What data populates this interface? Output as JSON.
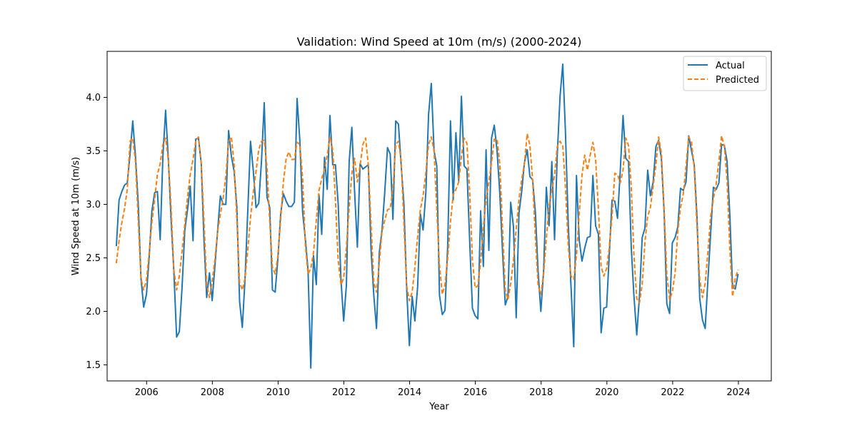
{
  "chart_data": {
    "type": "line",
    "title": "Validation: Wind Speed at 10m (m/s) (2000-2024)",
    "xlabel": "Year",
    "ylabel": "Wind Speed at 10m (m/s)",
    "xlim": [
      2004.8,
      2025.0
    ],
    "ylim": [
      1.35,
      4.43
    ],
    "xticks": [
      2006,
      2008,
      2010,
      2012,
      2014,
      2016,
      2018,
      2020,
      2022,
      2024
    ],
    "yticks": [
      1.5,
      2.0,
      2.5,
      3.0,
      3.5,
      4.0
    ],
    "ytick_labels": [
      "1.5",
      "2.0",
      "2.5",
      "3.0",
      "3.5",
      "4.0"
    ],
    "grid": false,
    "legend_position": "top-right",
    "x_start_year": 2005.08,
    "x_step_years": 0.0833,
    "series": [
      {
        "name": "Actual",
        "color": "#1f77b4",
        "style": "solid",
        "values": [
          2.61,
          3.04,
          3.12,
          3.18,
          3.2,
          3.47,
          3.78,
          3.45,
          3.0,
          2.31,
          2.04,
          2.16,
          2.51,
          2.94,
          3.11,
          3.12,
          2.67,
          3.45,
          3.88,
          3.41,
          2.85,
          2.38,
          1.76,
          1.81,
          2.22,
          2.76,
          2.95,
          3.17,
          2.66,
          3.61,
          3.62,
          3.38,
          2.67,
          2.13,
          2.36,
          2.1,
          2.43,
          2.76,
          3.08,
          3.0,
          3.0,
          3.69,
          3.45,
          3.31,
          2.98,
          2.09,
          1.85,
          2.3,
          2.95,
          3.59,
          3.32,
          2.97,
          3.01,
          3.41,
          3.95,
          3.07,
          2.97,
          2.2,
          2.18,
          2.5,
          2.91,
          3.1,
          3.03,
          2.98,
          2.98,
          3.02,
          3.99,
          3.6,
          2.93,
          2.68,
          2.39,
          1.47,
          2.52,
          2.25,
          3.09,
          2.72,
          3.44,
          3.14,
          3.83,
          3.37,
          3.37,
          3.01,
          2.3,
          1.91,
          2.24,
          3.4,
          3.72,
          3.12,
          2.6,
          3.38,
          3.33,
          3.35,
          3.37,
          2.57,
          2.15,
          1.84,
          2.55,
          2.76,
          3.11,
          3.53,
          3.47,
          2.86,
          3.78,
          3.75,
          3.37,
          3.0,
          2.22,
          1.68,
          2.14,
          1.91,
          2.23,
          2.91,
          2.76,
          3.11,
          3.84,
          4.13,
          3.5,
          3.36,
          2.15,
          1.97,
          2.01,
          2.62,
          3.78,
          3.04,
          3.67,
          3.22,
          4.01,
          3.36,
          3.33,
          2.67,
          2.03,
          1.96,
          1.93,
          2.94,
          2.42,
          3.51,
          2.57,
          3.62,
          3.74,
          3.5,
          3.11,
          2.57,
          2.06,
          2.14,
          3.02,
          2.79,
          1.94,
          2.92,
          3.12,
          3.39,
          3.51,
          3.26,
          3.23,
          2.92,
          2.37,
          2.0,
          2.38,
          3.16,
          2.8,
          3.4,
          2.67,
          3.46,
          4.01,
          4.31,
          3.67,
          2.81,
          2.24,
          1.67,
          3.27,
          2.67,
          2.47,
          2.59,
          2.69,
          2.7,
          3.27,
          2.8,
          2.72,
          1.8,
          2.03,
          2.04,
          2.54,
          3.04,
          3.03,
          2.87,
          3.31,
          3.83,
          3.43,
          3.4,
          2.6,
          2.14,
          1.78,
          2.14,
          2.69,
          2.78,
          3.32,
          3.08,
          3.21,
          3.54,
          3.6,
          3.43,
          2.93,
          2.07,
          1.98,
          2.64,
          2.69,
          2.79,
          3.15,
          3.13,
          3.21,
          3.64,
          3.5,
          3.37,
          2.89,
          2.12,
          1.92,
          1.84,
          2.3,
          2.73,
          3.16,
          3.14,
          3.2,
          3.56,
          3.55,
          3.4,
          2.89,
          2.22,
          2.21,
          2.35
        ]
      },
      {
        "name": "Predicted",
        "color": "#ff7f0e",
        "style": "dashed",
        "values": [
          2.45,
          2.66,
          2.83,
          2.96,
          3.14,
          3.59,
          3.62,
          3.4,
          2.85,
          2.31,
          2.2,
          2.29,
          2.55,
          2.83,
          3.05,
          3.28,
          3.38,
          3.56,
          3.62,
          3.41,
          2.97,
          2.39,
          2.2,
          2.33,
          2.56,
          2.82,
          3.07,
          3.28,
          3.42,
          3.59,
          3.63,
          3.39,
          2.85,
          2.25,
          2.13,
          2.28,
          2.49,
          2.75,
          2.91,
          3.06,
          3.27,
          3.59,
          3.63,
          3.38,
          2.87,
          2.27,
          2.2,
          2.31,
          2.58,
          2.88,
          3.11,
          3.31,
          3.51,
          3.59,
          3.6,
          3.35,
          2.84,
          2.41,
          2.35,
          2.52,
          2.86,
          3.21,
          3.43,
          3.49,
          3.42,
          3.42,
          3.58,
          3.56,
          3.25,
          2.63,
          2.35,
          2.4,
          2.55,
          2.85,
          3.13,
          3.24,
          3.33,
          3.46,
          3.63,
          3.51,
          3.04,
          2.48,
          2.25,
          2.31,
          2.6,
          2.97,
          3.29,
          3.43,
          3.21,
          3.36,
          3.56,
          3.62,
          3.37,
          2.81,
          2.27,
          2.18,
          2.45,
          2.75,
          2.85,
          2.95,
          2.96,
          3.15,
          3.56,
          3.59,
          3.41,
          2.82,
          2.24,
          2.1,
          2.18,
          2.41,
          2.7,
          2.95,
          3.08,
          3.3,
          3.56,
          3.63,
          3.5,
          2.95,
          2.43,
          2.16,
          2.25,
          2.5,
          2.84,
          3.09,
          3.14,
          3.21,
          3.45,
          3.62,
          3.57,
          3.12,
          2.48,
          2.22,
          2.24,
          2.46,
          2.79,
          3.04,
          3.21,
          3.39,
          3.61,
          3.61,
          3.38,
          2.78,
          2.2,
          2.11,
          2.26,
          2.48,
          2.77,
          3.05,
          3.23,
          3.38,
          3.66,
          3.55,
          3.23,
          2.69,
          2.24,
          2.16,
          2.35,
          2.68,
          2.98,
          3.13,
          3.27,
          3.54,
          3.59,
          3.55,
          3.16,
          2.61,
          2.33,
          2.3,
          2.52,
          2.91,
          3.27,
          3.46,
          3.32,
          3.46,
          3.58,
          3.42,
          2.96,
          2.42,
          2.33,
          2.4,
          2.6,
          2.89,
          3.29,
          3.28,
          3.2,
          3.32,
          3.62,
          3.55,
          3.16,
          2.52,
          2.12,
          2.08,
          2.25,
          2.65,
          2.89,
          2.97,
          3.17,
          3.37,
          3.63,
          3.48,
          2.96,
          2.35,
          2.11,
          2.18,
          2.36,
          2.75,
          2.97,
          3.1,
          3.36,
          3.63,
          3.58,
          3.34,
          2.8,
          2.3,
          2.13,
          2.26,
          2.56,
          2.89,
          3.05,
          3.19,
          3.4,
          3.64,
          3.54,
          3.22,
          2.57,
          2.14,
          2.31,
          2.39
        ]
      }
    ]
  }
}
